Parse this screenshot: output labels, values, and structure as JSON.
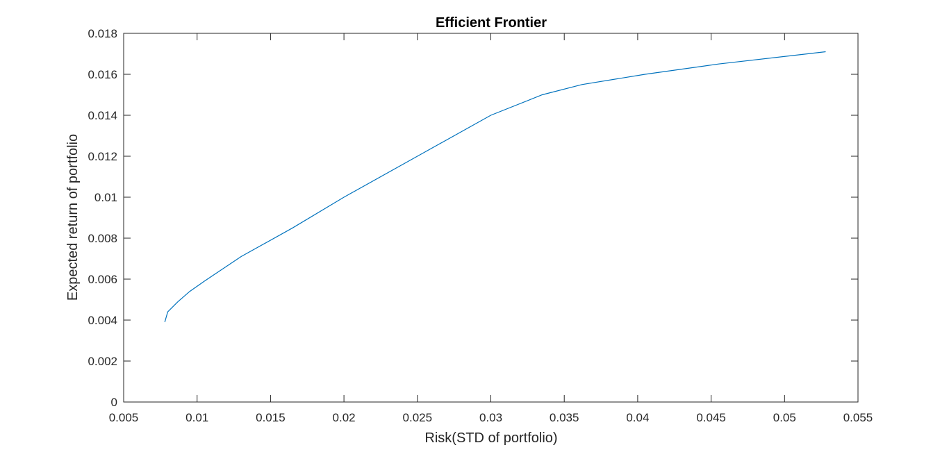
{
  "chart_data": {
    "type": "line",
    "title": "Efficient Frontier",
    "xlabel": "Risk(STD of portfolio)",
    "ylabel": "Expected return of portfolio",
    "xlim": [
      0.005,
      0.055
    ],
    "ylim": [
      0,
      0.018
    ],
    "x_ticks": [
      "0.005",
      "0.01",
      "0.015",
      "0.02",
      "0.025",
      "0.03",
      "0.035",
      "0.04",
      "0.045",
      "0.05",
      "0.055"
    ],
    "y_ticks": [
      "0",
      "0.002",
      "0.004",
      "0.006",
      "0.008",
      "0.01",
      "0.012",
      "0.014",
      "0.016",
      "0.018"
    ],
    "grid": false,
    "series": [
      {
        "color": "#0072bd",
        "x": [
          0.0078,
          0.008,
          0.0087,
          0.0095,
          0.0105,
          0.013,
          0.0165,
          0.02,
          0.025,
          0.03,
          0.0335,
          0.0362,
          0.0405,
          0.0455,
          0.0528
        ],
        "y": [
          0.0039,
          0.0044,
          0.0049,
          0.0054,
          0.0059,
          0.0071,
          0.0085,
          0.01,
          0.012,
          0.014,
          0.015,
          0.0155,
          0.016,
          0.0165,
          0.0171
        ]
      }
    ]
  }
}
